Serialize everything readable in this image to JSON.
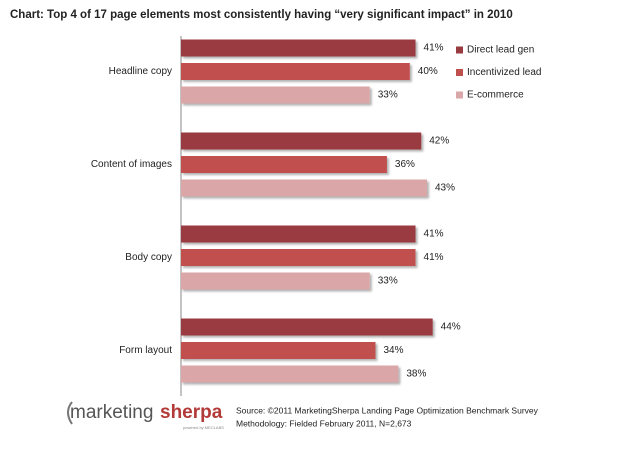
{
  "chart_data": {
    "type": "bar",
    "orientation": "horizontal",
    "title": "Chart: Top 4 of 17 page elements most consistently having “very significant impact” in 2010",
    "categories": [
      "Headline copy",
      "Content of images",
      "Body copy",
      "Form layout"
    ],
    "series": [
      {
        "name": "Direct lead gen",
        "color": "#993b3f",
        "values": [
          41,
          42,
          41,
          44
        ],
        "value_labels": [
          "41%",
          "42%",
          "41%",
          "44%"
        ]
      },
      {
        "name": "Incentivized lead",
        "color": "#c0504d",
        "values": [
          40,
          36,
          41,
          34
        ],
        "value_labels": [
          "40%",
          "36%",
          "41%",
          "34%"
        ]
      },
      {
        "name": "E-commerce",
        "color": "#dba6a7",
        "values": [
          33,
          43,
          33,
          38
        ],
        "value_labels": [
          "33%",
          "43%",
          "33%",
          "38%"
        ]
      }
    ],
    "legend": "top-right",
    "source": [
      "Source: ©2011 MarketingSherpa Landing Page Optimization Benchmark Survey",
      "Methodology: Fielded February 2011, N=2,673"
    ],
    "logo": {
      "first": "marketing",
      "second": "sherpa",
      "tagline": "powered by MECLABS"
    }
  }
}
